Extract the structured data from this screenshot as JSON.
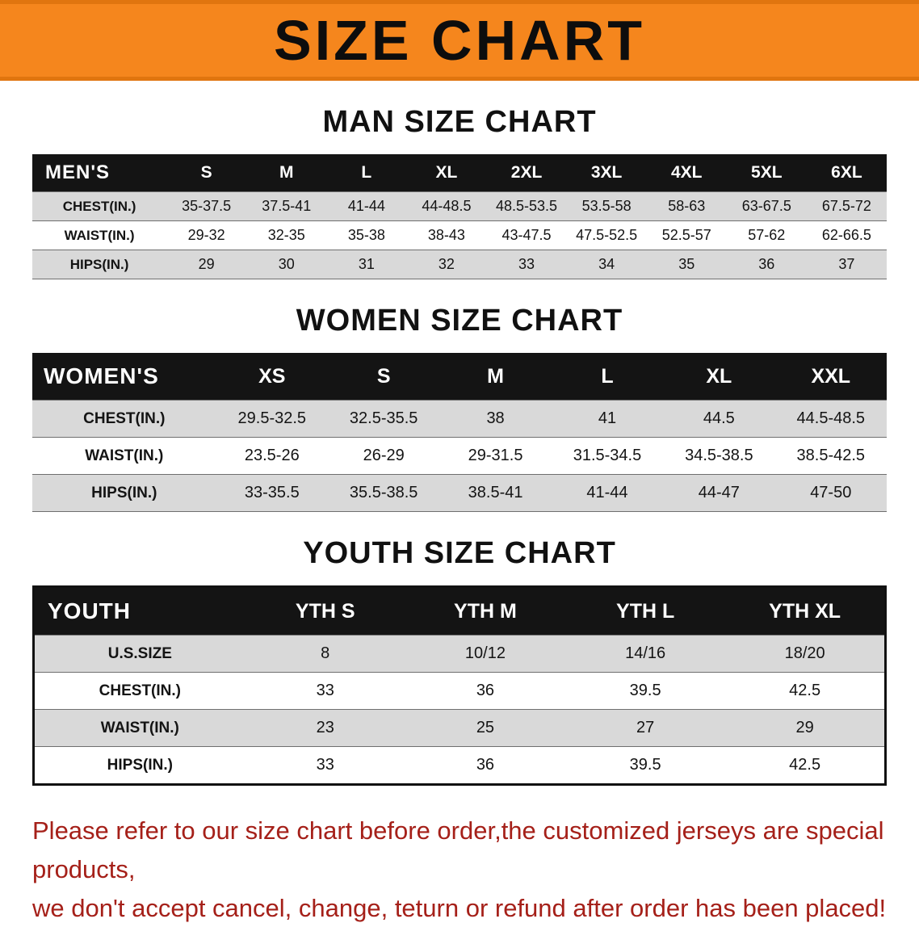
{
  "banner": {
    "title": "SIZE CHART"
  },
  "colors": {
    "banner_bg": "#f5861d",
    "banner_edge": "#e0750f",
    "header_bg": "#141414",
    "row_shade": "#d9d9d9",
    "footer_color": "#a52019"
  },
  "men": {
    "heading": "MAN SIZE CHART",
    "label": "MEN'S",
    "columns": [
      "S",
      "M",
      "L",
      "XL",
      "2XL",
      "3XL",
      "4XL",
      "5XL",
      "6XL"
    ],
    "rows": [
      {
        "label": "CHEST(IN.)",
        "values": [
          "35-37.5",
          "37.5-41",
          "41-44",
          "44-48.5",
          "48.5-53.5",
          "53.5-58",
          "58-63",
          "63-67.5",
          "67.5-72"
        ]
      },
      {
        "label": "WAIST(IN.)",
        "values": [
          "29-32",
          "32-35",
          "35-38",
          "38-43",
          "43-47.5",
          "47.5-52.5",
          "52.5-57",
          "57-62",
          "62-66.5"
        ]
      },
      {
        "label": "HIPS(IN.)",
        "values": [
          "29",
          "30",
          "31",
          "32",
          "33",
          "34",
          "35",
          "36",
          "37"
        ]
      }
    ]
  },
  "women": {
    "heading": "WOMEN SIZE CHART",
    "label": "WOMEN'S",
    "columns": [
      "XS",
      "S",
      "M",
      "L",
      "XL",
      "XXL"
    ],
    "rows": [
      {
        "label": "CHEST(IN.)",
        "values": [
          "29.5-32.5",
          "32.5-35.5",
          "38",
          "41",
          "44.5",
          "44.5-48.5"
        ]
      },
      {
        "label": "WAIST(IN.)",
        "values": [
          "23.5-26",
          "26-29",
          "29-31.5",
          "31.5-34.5",
          "34.5-38.5",
          "38.5-42.5"
        ]
      },
      {
        "label": "HIPS(IN.)",
        "values": [
          "33-35.5",
          "35.5-38.5",
          "38.5-41",
          "41-44",
          "44-47",
          "47-50"
        ]
      }
    ]
  },
  "youth": {
    "heading": "YOUTH SIZE CHART",
    "label": "YOUTH",
    "columns": [
      "YTH S",
      "YTH M",
      "YTH L",
      "YTH XL"
    ],
    "rows": [
      {
        "label": "U.S.SIZE",
        "values": [
          "8",
          "10/12",
          "14/16",
          "18/20"
        ]
      },
      {
        "label": "CHEST(IN.)",
        "values": [
          "33",
          "36",
          "39.5",
          "42.5"
        ]
      },
      {
        "label": "WAIST(IN.)",
        "values": [
          "23",
          "25",
          "27",
          "29"
        ]
      },
      {
        "label": "HIPS(IN.)",
        "values": [
          "33",
          "36",
          "39.5",
          "42.5"
        ]
      }
    ]
  },
  "footer": {
    "lines": [
      "Please refer to our size chart before order,the customized jerseys are special products,",
      "we don't accept cancel, change, teturn or refund after order has been placed!"
    ]
  }
}
